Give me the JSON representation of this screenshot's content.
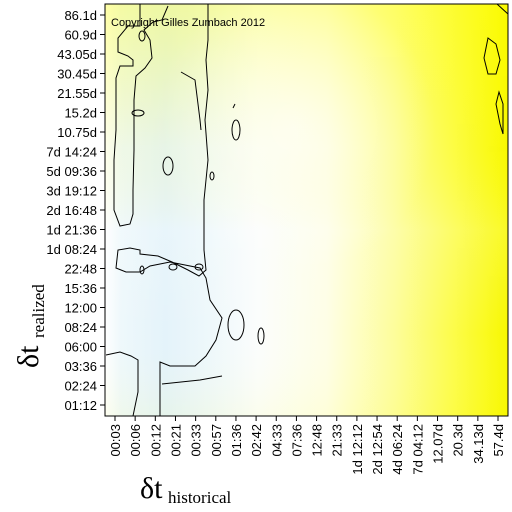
{
  "chart_data": {
    "type": "heatmap",
    "annotation": "Copyright Gilles Zumbach 2012",
    "xlabel": {
      "symbol": "δt",
      "subscript": "historical"
    },
    "ylabel": {
      "symbol": "δt",
      "subscript": "realized"
    },
    "x_ticks": [
      "00:03",
      "00:06",
      "00:12",
      "00:21",
      "00:33",
      "00:57",
      "01:36",
      "02:42",
      "04:33",
      "07:36",
      "12:48",
      "21:33",
      "1d 12:12",
      "2d 12:54",
      "4d 06:24",
      "7d 04:12",
      "12.07d",
      "20.3d",
      "34.13d",
      "57.4d"
    ],
    "y_ticks": [
      "01:12",
      "02:24",
      "03:36",
      "06:00",
      "08:24",
      "12:00",
      "15:36",
      "22:48",
      "1d 08:24",
      "1d 21:36",
      "2d 16:48",
      "3d 19:12",
      "5d 09:36",
      "7d 14:24",
      "10.75d",
      "15.2d",
      "21.55d",
      "30.45d",
      "43.05d",
      "60.9d",
      "86.1d"
    ],
    "color_scale": {
      "low": "#e6f4fa",
      "mid": "#ffffff",
      "high": "#ffff00"
    },
    "contour_level": "single contour line",
    "grid": false,
    "legend": "none"
  }
}
